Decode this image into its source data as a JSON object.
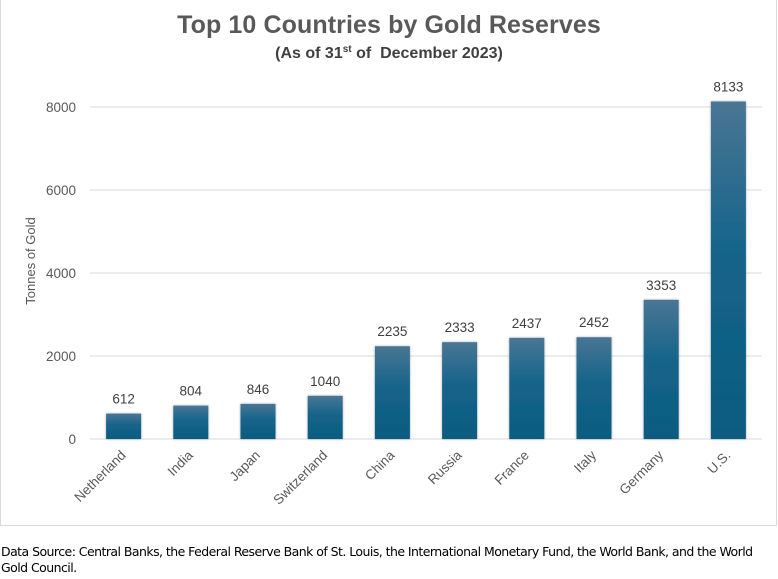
{
  "chart_data": {
    "type": "bar",
    "title": "Top 10 Countries by Gold Reserves",
    "subtitle_prefix": "(As of 31",
    "subtitle_sup": "st",
    "subtitle_suffix": " of  December 2023)",
    "xlabel": "",
    "ylabel": "Tonnes of Gold",
    "categories": [
      "Netherland",
      "India",
      "Japan",
      "Switzerland",
      "China",
      "Russia",
      "France",
      "Italy",
      "Germany",
      "U.S."
    ],
    "values": [
      612,
      804,
      846,
      1040,
      2235,
      2333,
      2437,
      2452,
      3353,
      8133
    ],
    "data_labels": [
      "612",
      "804",
      "846",
      "1040",
      "2235",
      "2333",
      "2437",
      "2452",
      "3353",
      "8133"
    ],
    "ylim": [
      0,
      8000
    ],
    "yticks": [
      0,
      2000,
      4000,
      6000,
      8000
    ],
    "ytick_labels": [
      "0",
      "2000",
      "4000",
      "6000",
      "8000"
    ],
    "grid": true,
    "legend": "none",
    "colors": {
      "bar_top": "#4a7594",
      "bar_bottom": "#0d5b80",
      "grid": "#d9d9d9",
      "tick_text": "#595959",
      "label_text": "#404040"
    }
  },
  "footnote": "Data Source: Central Banks, the Federal Reserve Bank of St. Louis, the International Monetary Fund, the World Bank, and the World Gold Council."
}
